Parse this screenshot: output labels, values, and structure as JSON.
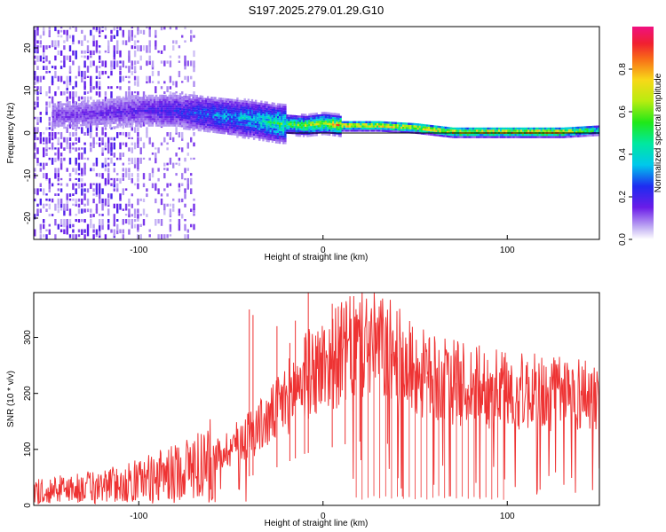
{
  "title": "S197.2025.279.01.29.G10",
  "chart_data": [
    {
      "type": "heatmap",
      "title": "S197.2025.279.01.29.G10",
      "xlabel": "Height of straight line (km)",
      "ylabel": "Frequency (Hz)",
      "xlim": [
        -157,
        150
      ],
      "ylim": [
        -25,
        25
      ],
      "xticks": [
        -100,
        0,
        100
      ],
      "xtick_labels": [
        "-100",
        "0",
        "100"
      ],
      "yticks": [
        -20,
        -10,
        0,
        10,
        20
      ],
      "ytick_labels": [
        "-20",
        "-10",
        "0",
        "10",
        "20"
      ],
      "zero_line": 0,
      "colorbar": {
        "label": "Normalized spectral amplitude",
        "range": [
          0,
          1
        ],
        "ticks": [
          0.0,
          0.2,
          0.4,
          0.6,
          0.8
        ],
        "tick_labels": [
          "0.0",
          "0.2",
          "0.4",
          "0.6",
          "0.8"
        ]
      },
      "ridge": {
        "x": [
          -135,
          -100,
          -80,
          -60,
          -40,
          -25,
          -10,
          0,
          10,
          30,
          50,
          60,
          70,
          90,
          110,
          130,
          150
        ],
        "y": [
          4,
          5,
          5,
          4,
          3,
          2,
          1.5,
          2,
          1.5,
          1.5,
          1,
          0.5,
          0,
          0,
          0,
          0,
          0.5
        ],
        "amplitude": [
          0.15,
          0.2,
          0.25,
          0.35,
          0.45,
          0.55,
          0.7,
          0.75,
          0.85,
          0.85,
          0.85,
          0.85,
          0.9,
          0.9,
          0.9,
          0.9,
          0.5
        ]
      }
    },
    {
      "type": "line",
      "xlabel": "Height of straight line (km)",
      "ylabel": "SNR (10 * v/v)",
      "xlim": [
        -157,
        150
      ],
      "ylim": [
        0,
        380
      ],
      "xticks": [
        -100,
        0,
        100
      ],
      "xtick_labels": [
        "-100",
        "0",
        "100"
      ],
      "yticks": [
        0,
        100,
        200,
        300
      ],
      "ytick_labels": [
        "0",
        "100",
        "200",
        "300"
      ],
      "series": [
        {
          "name": "SNR",
          "color": "#ee3333",
          "envelope_x": [
            -157,
            -140,
            -120,
            -100,
            -80,
            -60,
            -50,
            -40,
            -30,
            -20,
            -10,
            0,
            10,
            20,
            25,
            30,
            40,
            50,
            60,
            80,
            100,
            120,
            140,
            150
          ],
          "envelope_y": [
            25,
            30,
            35,
            45,
            60,
            85,
            105,
            130,
            150,
            190,
            230,
            250,
            270,
            285,
            290,
            285,
            265,
            240,
            225,
            215,
            205,
            200,
            200,
            195
          ],
          "spikes_x": [
            -40,
            -38,
            -25,
            -18,
            -15,
            -10,
            -8,
            5,
            12,
            20,
            35
          ],
          "spikes_y": [
            350,
            340,
            320,
            290,
            330,
            300,
            380,
            360,
            310,
            315,
            320
          ]
        }
      ]
    }
  ]
}
